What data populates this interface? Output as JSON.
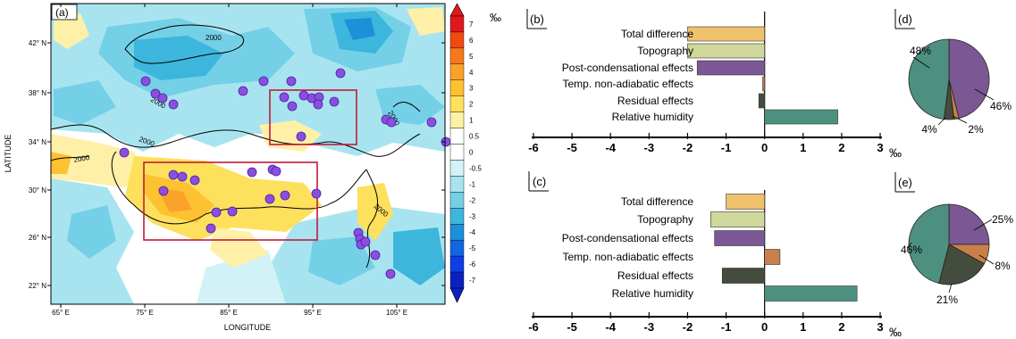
{
  "map": {
    "panel_label": "(a)",
    "xlabel": "LONGITUDE",
    "ylabel": "LATITUDE",
    "x_ticks": [
      "65° E",
      "75° E",
      "85° E",
      "95° E",
      "105° E"
    ],
    "y_ticks": [
      "42° N",
      "38° N",
      "34° N",
      "30° N",
      "26° N",
      "22° N"
    ],
    "contour_labels": [
      "2000",
      "2000",
      "2000",
      "2000",
      "2000",
      "2000"
    ],
    "colorbar": {
      "unit": "‰",
      "levels": [
        "7",
        "6",
        "5",
        "4",
        "3",
        "2",
        "1",
        "0.5",
        "0",
        "-0.5",
        "-1",
        "-2",
        "-3",
        "-4",
        "-5",
        "-6",
        "-7"
      ],
      "colors": [
        "#e0181c",
        "#f04a10",
        "#f7781a",
        "#fba22a",
        "#fcc232",
        "#fde05c",
        "#fff0a8",
        "#ffffff",
        "#ffffff",
        "#d2f2f8",
        "#a8e4f0",
        "#74d0e6",
        "#3cb6dc",
        "#1c90d8",
        "#1466e0",
        "#0d3ee8",
        "#0a22c0"
      ]
    },
    "stations": 50,
    "boxes": 2
  },
  "bar_unit": "‰",
  "chart_data": [
    {
      "type": "bar",
      "panel": "(b)",
      "orientation": "horizontal",
      "categories": [
        "Total difference",
        "Topography",
        "Post-condensational effects",
        "Temp. non-adiabatic effects",
        "Residual effects",
        "Relative humidity"
      ],
      "values": [
        -2.0,
        -2.0,
        -1.75,
        -0.05,
        -0.15,
        1.9
      ],
      "colors": [
        "#efc16a",
        "#cfd89a",
        "#7b5893",
        "#c8804a",
        "#434c3d",
        "#4e9080"
      ],
      "xlim": [
        -6,
        3
      ],
      "xticks": [
        "-6",
        "-5",
        "-4",
        "-3",
        "-2",
        "-1",
        "0",
        "1",
        "2",
        "3"
      ],
      "xlabel": "‰"
    },
    {
      "type": "bar",
      "panel": "(c)",
      "orientation": "horizontal",
      "categories": [
        "Total difference",
        "Topography",
        "Post-condensational effects",
        "Temp. non-adiabatic effects",
        "Residual effects",
        "Relative humidity"
      ],
      "values": [
        -1.0,
        -1.4,
        -1.3,
        0.4,
        -1.1,
        2.4
      ],
      "colors": [
        "#efc16a",
        "#cfd89a",
        "#7b5893",
        "#c8804a",
        "#434c3d",
        "#4e9080"
      ],
      "xlim": [
        -6,
        3
      ],
      "xticks": [
        "-6",
        "-5",
        "-4",
        "-3",
        "-2",
        "-1",
        "0",
        "1",
        "2",
        "3"
      ],
      "xlabel": "‰"
    },
    {
      "type": "pie",
      "panel": "(d)",
      "slices": [
        {
          "value": 46,
          "label": "46%",
          "color": "#7b5893"
        },
        {
          "value": 2,
          "label": "2%",
          "color": "#c8804a"
        },
        {
          "value": 4,
          "label": "4%",
          "color": "#434c3d"
        },
        {
          "value": 48,
          "label": "48%",
          "color": "#4e9080"
        }
      ]
    },
    {
      "type": "pie",
      "panel": "(e)",
      "slices": [
        {
          "value": 25,
          "label": "25%",
          "color": "#7b5893"
        },
        {
          "value": 8,
          "label": "8%",
          "color": "#c8804a"
        },
        {
          "value": 21,
          "label": "21%",
          "color": "#434c3d"
        },
        {
          "value": 46,
          "label": "46%",
          "color": "#4e9080"
        }
      ]
    }
  ]
}
